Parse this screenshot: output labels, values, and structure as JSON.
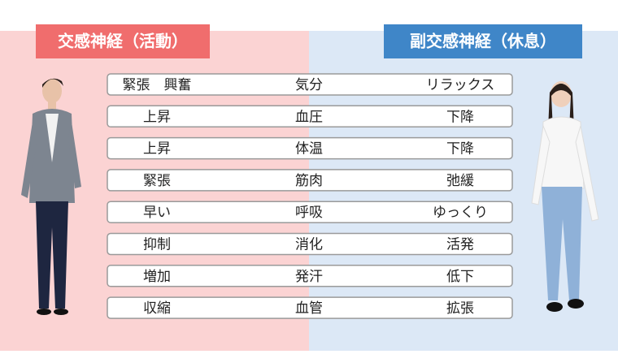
{
  "header": {
    "left": "交感神経（活動）",
    "right": "副交感神経（休息）"
  },
  "table": {
    "rows": [
      [
        "緊張　興奮",
        "気分",
        "リラックス"
      ],
      [
        "上昇",
        "血圧",
        "下降"
      ],
      [
        "上昇",
        "体温",
        "下降"
      ],
      [
        "緊張",
        "筋肉",
        "弛緩"
      ],
      [
        "早い",
        "呼吸",
        "ゆっくり"
      ],
      [
        "抑制",
        "消化",
        "活発"
      ],
      [
        "増加",
        "発汗",
        "低下"
      ],
      [
        "収縮",
        "血管",
        "拡張"
      ]
    ]
  }
}
